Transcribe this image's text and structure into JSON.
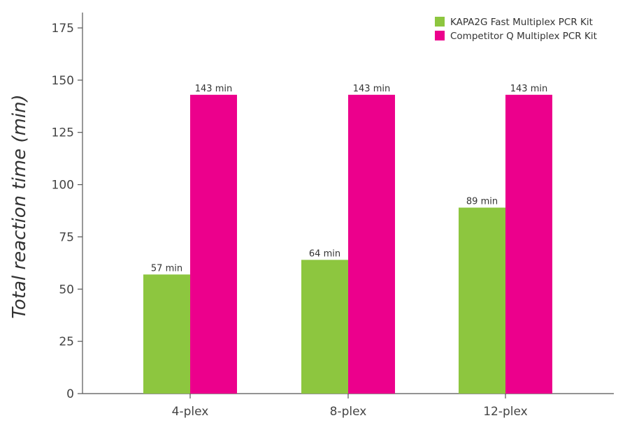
{
  "chart_data": {
    "type": "bar",
    "title": "",
    "xlabel": "",
    "ylabel": "Total reaction time (min)",
    "categories": [
      "4-plex",
      "8-plex",
      "12-plex"
    ],
    "series": [
      {
        "name": "KAPA2G Fast Multiplex PCR Kit",
        "color": "#8dc63f",
        "values": [
          57,
          64,
          89
        ],
        "labels": [
          "57 min",
          "64 min",
          "89 min"
        ]
      },
      {
        "name": "Competitor Q Multiplex PCR Kit",
        "color": "#ec008c",
        "values": [
          143,
          143,
          143
        ],
        "labels": [
          "143 min",
          "143 min",
          "143 min"
        ]
      }
    ],
    "ylim": [
      0,
      175
    ],
    "yticks": [
      0,
      25,
      50,
      75,
      100,
      125,
      150,
      175
    ],
    "grid": false,
    "legend_position": "top-right"
  }
}
